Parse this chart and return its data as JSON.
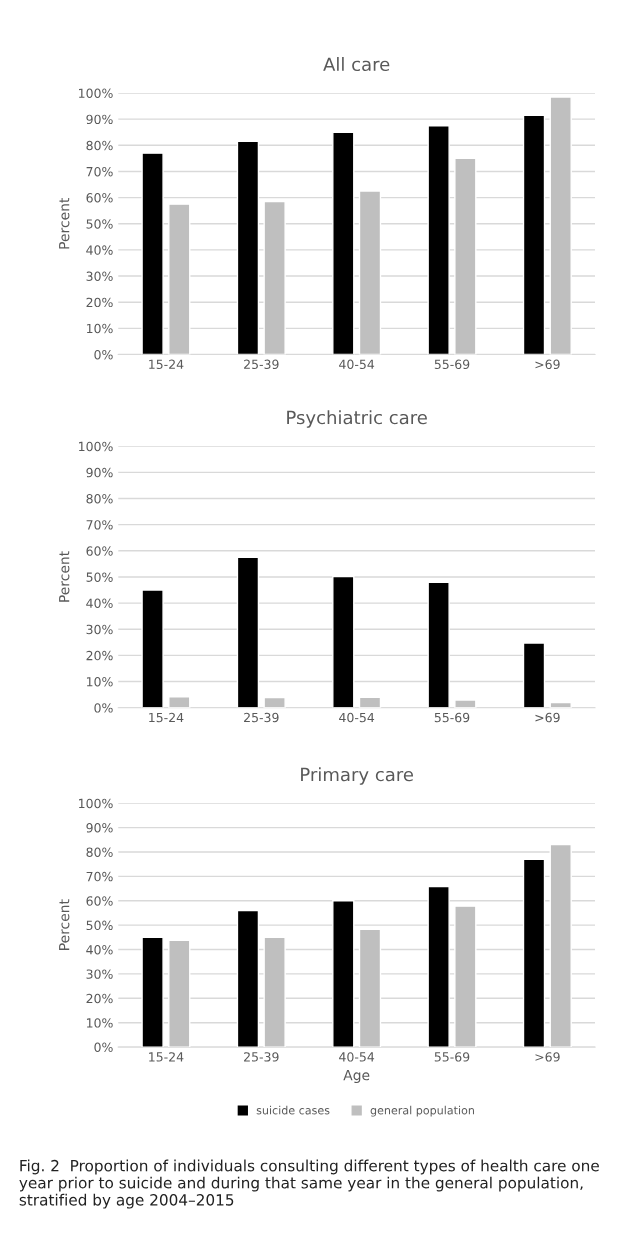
{
  "chart_data": [
    {
      "type": "bar",
      "title": "All care",
      "ylabel": "Percent",
      "categories": [
        "15-24",
        "25-39",
        "40-54",
        "55-69",
        ">69"
      ],
      "series": [
        {
          "color": "#000000",
          "values": [
            77,
            81.5,
            85,
            87.5,
            91.5
          ]
        },
        {
          "color": "#bfbfbf",
          "values": [
            57.5,
            58.5,
            62.5,
            75,
            98.5
          ]
        }
      ],
      "ylim": [
        0,
        100
      ],
      "yticks": [
        {
          "value": 0,
          "label": "0%"
        },
        {
          "value": 10,
          "label": "10%"
        },
        {
          "value": 20,
          "label": "20%"
        },
        {
          "value": 30,
          "label": "30%"
        },
        {
          "value": 40,
          "label": "40%"
        },
        {
          "value": 50,
          "label": "50%"
        },
        {
          "value": 60,
          "label": "60%"
        },
        {
          "value": 70,
          "label": "70%"
        },
        {
          "value": 80,
          "label": "80%"
        },
        {
          "value": 90,
          "label": "90%"
        },
        {
          "value": 100,
          "label": "100%"
        }
      ],
      "grid": "y",
      "legend": false
    },
    {
      "type": "bar",
      "title": "Psychiatric care",
      "ylabel": "Percent",
      "categories": [
        "15-24",
        "25-39",
        "40-54",
        "55-69",
        ">69"
      ],
      "series": [
        {
          "color": "#000000",
          "values": [
            45,
            57.5,
            50.2,
            48,
            24.7
          ]
        },
        {
          "color": "#bfbfbf",
          "values": [
            4.2,
            3.9,
            4,
            2.9,
            2
          ]
        }
      ],
      "ylim": [
        0,
        100
      ],
      "yticks": [
        {
          "value": 0,
          "label": "0%"
        },
        {
          "value": 10,
          "label": "10%"
        },
        {
          "value": 20,
          "label": "20%"
        },
        {
          "value": 30,
          "label": "30%"
        },
        {
          "value": 40,
          "label": "40%"
        },
        {
          "value": 50,
          "label": "50%"
        },
        {
          "value": 60,
          "label": "60%"
        },
        {
          "value": 70,
          "label": "70%"
        },
        {
          "value": 80,
          "label": "80%"
        },
        {
          "value": 90,
          "label": "90%"
        },
        {
          "value": 100,
          "label": "100%"
        }
      ],
      "grid": "y",
      "legend": false
    },
    {
      "type": "bar",
      "title": "Primary care",
      "xlabel": "Age",
      "ylabel": "Percent",
      "categories": [
        "15-24",
        "25-39",
        "40-54",
        "55-69",
        ">69"
      ],
      "series": [
        {
          "name": "suicide cases",
          "color": "#000000",
          "values": [
            45,
            56,
            60,
            65.8,
            77
          ]
        },
        {
          "name": "general population",
          "color": "#bfbfbf",
          "values": [
            43.8,
            45,
            48.3,
            57.8,
            83
          ]
        }
      ],
      "ylim": [
        0,
        100
      ],
      "yticks": [
        {
          "value": 0,
          "label": "0%"
        },
        {
          "value": 10,
          "label": "10%"
        },
        {
          "value": 20,
          "label": "20%"
        },
        {
          "value": 30,
          "label": "30%"
        },
        {
          "value": 40,
          "label": "40%"
        },
        {
          "value": 50,
          "label": "50%"
        },
        {
          "value": 60,
          "label": "60%"
        },
        {
          "value": 70,
          "label": "70%"
        },
        {
          "value": 80,
          "label": "80%"
        },
        {
          "value": 90,
          "label": "90%"
        },
        {
          "value": 100,
          "label": "100%"
        }
      ],
      "grid": "y",
      "legend": "bottom",
      "annotations": [
        "Fig. 2  Proportion of individuals consulting different types of health care one year prior to suicide and during that same year in the general population, stratified by age 2004–2015"
      ]
    }
  ]
}
